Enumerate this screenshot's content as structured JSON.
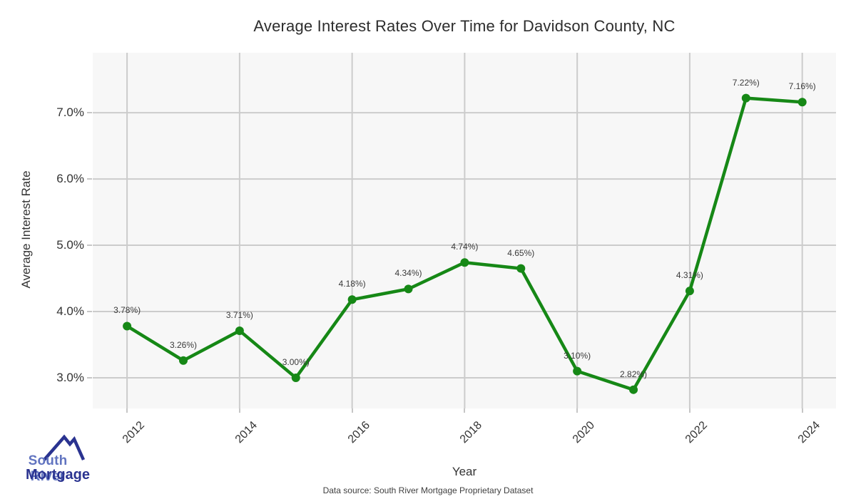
{
  "title": "Average Interest Rates Over Time for Davidson County, NC",
  "chart_data": {
    "type": "line",
    "x": [
      2012,
      2013,
      2014,
      2015,
      2016,
      2017,
      2018,
      2019,
      2020,
      2021,
      2022,
      2023,
      2024
    ],
    "values": [
      3.78,
      3.26,
      3.71,
      3.0,
      4.18,
      4.34,
      4.74,
      4.65,
      3.1,
      2.82,
      4.31,
      7.22,
      7.16
    ],
    "point_labels": [
      "3.78%)",
      "3.26%)",
      "3.71%)",
      "3.00%)",
      "4.18%)",
      "4.34%)",
      "4.74%)",
      "4.65%)",
      "3.10%)",
      "2.82%)",
      "4.31%)",
      "7.22%)",
      "7.16%)"
    ],
    "title": "Average Interest Rates Over Time for Davidson County, NC",
    "xlabel": "Year",
    "ylabel": "Average Interest Rate",
    "xlim": [
      2011.39,
      2024.6
    ],
    "ylim": [
      2.537,
      7.905
    ],
    "xticks": [
      2012,
      2014,
      2016,
      2018,
      2020,
      2022,
      2024
    ],
    "xtick_labels": [
      "2012",
      "2014",
      "2016",
      "2018",
      "2020",
      "2022",
      "2024"
    ],
    "yticks": [
      3.0,
      4.0,
      5.0,
      6.0,
      7.0
    ],
    "ytick_labels": [
      "3.0%",
      "4.0%",
      "5.0%",
      "6.0%",
      "7.0%"
    ],
    "grid": true,
    "legend": false,
    "colors": {
      "line": "#168816",
      "marker": "#168816",
      "plot_background": "#f7f7f7",
      "gridline": "#cccccc",
      "tick_mark": "#c6c6c6"
    }
  },
  "footer": {
    "source_note": "Data source: South River Mortgage Proprietary Dataset"
  },
  "logo": {
    "line1": "South River",
    "line2": "Mortgage",
    "colors": {
      "roof": "#2a3390",
      "line1": "#6174c0",
      "line2": "#2a3390"
    }
  }
}
